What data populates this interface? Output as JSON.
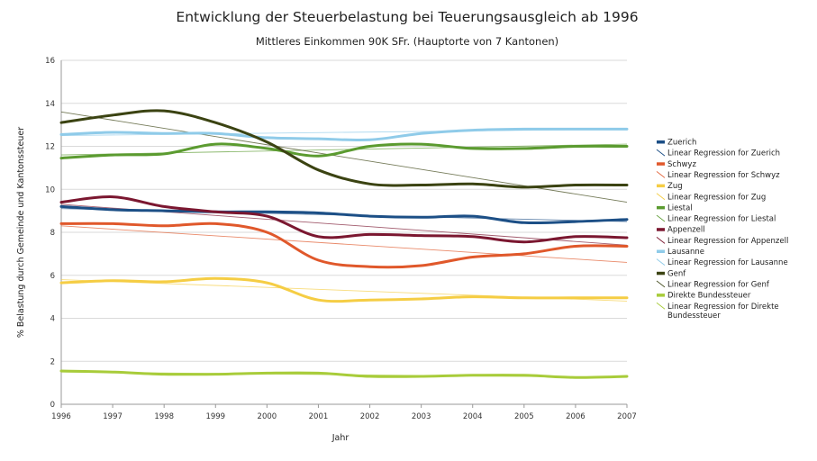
{
  "chart_data": {
    "type": "line",
    "title": "Entwicklung der Steuerbelastung bei Teuerungsausgleich ab 1996",
    "subtitle": "Mittleres Einkommen 90K SFr. (Hauptorte von 7 Kantonen)",
    "xlabel": "Jahr",
    "ylabel": "% Belastung durch Gemeinde und Kantonssteuer",
    "x": [
      1996,
      1997,
      1998,
      1999,
      2000,
      2001,
      2002,
      2003,
      2004,
      2005,
      2006,
      2007
    ],
    "xlim": [
      1996,
      2007
    ],
    "ylim": [
      0,
      16
    ],
    "yticks": [
      0,
      2,
      4,
      6,
      8,
      10,
      12,
      14,
      16
    ],
    "grid": true,
    "legend_position": "right",
    "series": [
      {
        "name": "Zuerich",
        "color": "#1c4f86",
        "values": [
          9.2,
          9.05,
          9.0,
          8.95,
          8.95,
          8.9,
          8.75,
          8.7,
          8.75,
          8.45,
          8.5,
          8.6
        ],
        "regression": {
          "name": "Linear Regression for Zuerich",
          "start": 9.1,
          "end": 8.5
        }
      },
      {
        "name": "Schwyz",
        "color": "#e0582b",
        "values": [
          8.4,
          8.4,
          8.3,
          8.4,
          8.0,
          6.7,
          6.4,
          6.45,
          6.85,
          7.0,
          7.35,
          7.35
        ],
        "regression": {
          "name": "Linear Regression for Schwyz",
          "start": 8.3,
          "end": 6.6
        }
      },
      {
        "name": "Zug",
        "color": "#f5cd44",
        "values": [
          5.65,
          5.75,
          5.7,
          5.85,
          5.65,
          4.85,
          4.85,
          4.9,
          5.0,
          4.95,
          4.95,
          4.95
        ],
        "regression": {
          "name": "Linear Regression for Zug",
          "start": 5.8,
          "end": 4.8
        }
      },
      {
        "name": "Liestal",
        "color": "#5b9b30",
        "values": [
          11.45,
          11.6,
          11.65,
          12.1,
          11.9,
          11.55,
          12.0,
          12.1,
          11.9,
          11.9,
          12.0,
          12.0
        ],
        "regression": {
          "name": "Linear Regression for Liestal",
          "start": 11.6,
          "end": 12.1
        }
      },
      {
        "name": "Appenzell",
        "color": "#7b1730",
        "values": [
          9.4,
          9.65,
          9.2,
          8.95,
          8.75,
          7.8,
          7.9,
          7.85,
          7.8,
          7.55,
          7.8,
          7.75
        ],
        "regression": {
          "name": "Linear Regression for Appenzell",
          "start": 9.3,
          "end": 7.4
        }
      },
      {
        "name": "Lausanne",
        "color": "#8fcbe9",
        "values": [
          12.55,
          12.65,
          12.6,
          12.6,
          12.4,
          12.35,
          12.3,
          12.6,
          12.75,
          12.8,
          12.8,
          12.8
        ],
        "regression": {
          "name": "Linear Regression for Lausanne",
          "start": 12.5,
          "end": 12.8
        }
      },
      {
        "name": "Genf",
        "color": "#3b4312",
        "values": [
          13.1,
          13.45,
          13.65,
          13.1,
          12.2,
          10.9,
          10.25,
          10.2,
          10.25,
          10.1,
          10.2,
          10.2
        ],
        "regression": {
          "name": "Linear Regression for Genf",
          "start": 13.6,
          "end": 9.4
        }
      },
      {
        "name": "Direkte Bundessteuer",
        "color": "#a8cc3a",
        "values": [
          1.55,
          1.5,
          1.4,
          1.4,
          1.45,
          1.45,
          1.3,
          1.3,
          1.35,
          1.35,
          1.25,
          1.3
        ],
        "regression": {
          "name": "Linear Regression for Direkte Bundessteuer",
          "name_lines": [
            "Linear Regression for Direkte",
            "Bundessteuer"
          ],
          "start": 1.5,
          "end": 1.25
        }
      }
    ]
  }
}
